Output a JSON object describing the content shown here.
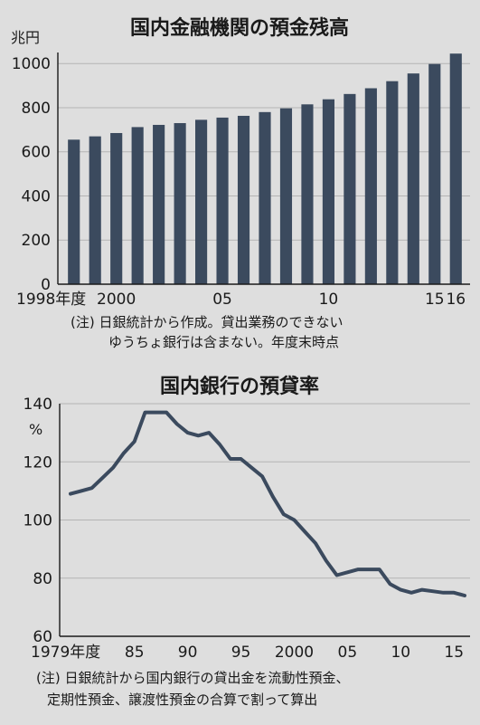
{
  "chart_data": [
    {
      "type": "bar",
      "title": "国内金融機関の預金残高",
      "y_unit": "兆円",
      "ylim": [
        0,
        1050
      ],
      "y_ticks": [
        0,
        200,
        400,
        600,
        800,
        1000
      ],
      "x_labels": [
        {
          "text": "1998年度",
          "year": 1998
        },
        {
          "text": "2000",
          "year": 2000
        },
        {
          "text": "05",
          "year": 2005
        },
        {
          "text": "10",
          "year": 2010
        },
        {
          "text": "15",
          "year": 2015
        },
        {
          "text": "16",
          "year": 2016
        }
      ],
      "categories": [
        1998,
        1999,
        2000,
        2001,
        2002,
        2003,
        2004,
        2005,
        2006,
        2007,
        2008,
        2009,
        2010,
        2011,
        2012,
        2013,
        2014,
        2015,
        2016
      ],
      "values": [
        655,
        670,
        685,
        712,
        722,
        730,
        745,
        755,
        763,
        780,
        797,
        815,
        838,
        862,
        888,
        920,
        955,
        998,
        1045
      ],
      "color": "#3b4a5e",
      "grid": true,
      "note": [
        "(注) 日銀統計から作成。貸出業務のできない",
        "ゆうちょ銀行は含まない。年度末時点"
      ]
    },
    {
      "type": "line",
      "title": "国内銀行の預貸率",
      "y_unit": "%",
      "ylim": [
        60,
        140
      ],
      "y_ticks": [
        60,
        80,
        100,
        120,
        140
      ],
      "x_labels": [
        {
          "text": "1979年度",
          "year": 1979
        },
        {
          "text": "85",
          "year": 1985
        },
        {
          "text": "90",
          "year": 1990
        },
        {
          "text": "95",
          "year": 1995
        },
        {
          "text": "2000",
          "year": 2000
        },
        {
          "text": "05",
          "year": 2005
        },
        {
          "text": "10",
          "year": 2010
        },
        {
          "text": "15",
          "year": 2015
        }
      ],
      "x": [
        1979,
        1980,
        1981,
        1982,
        1983,
        1984,
        1985,
        1986,
        1987,
        1988,
        1989,
        1990,
        1991,
        1992,
        1993,
        1994,
        1995,
        1996,
        1997,
        1998,
        1999,
        2000,
        2001,
        2002,
        2003,
        2004,
        2005,
        2006,
        2007,
        2008,
        2009,
        2010,
        2011,
        2012,
        2013,
        2014,
        2015,
        2016
      ],
      "y": [
        109,
        110,
        111,
        114.5,
        118,
        123,
        127,
        137,
        137,
        137,
        133,
        130,
        129,
        130,
        126,
        121,
        121,
        118,
        115,
        108,
        102,
        100,
        96,
        92,
        86,
        81,
        82,
        83,
        83,
        83,
        78,
        76,
        75,
        76,
        75.5,
        75,
        75,
        74
      ],
      "color": "#3b4a5e",
      "grid": true,
      "note": [
        "(注) 日銀統計から国内銀行の貸出金を流動性預金、",
        "定期性預金、譲渡性預金の合算で割って算出"
      ]
    }
  ]
}
